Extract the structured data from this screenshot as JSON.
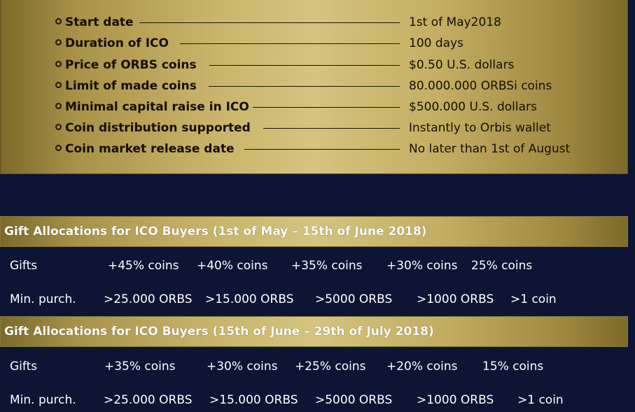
{
  "info": {
    "rows": [
      {
        "label": "Start date",
        "value": "1st of May2018"
      },
      {
        "label": "Duration of  ICO",
        "value": "100 days"
      },
      {
        "label": "Price of ORBS coins",
        "value": "$0.50 U.S. dollars"
      },
      {
        "label": "Limit of made coins",
        "value": "80.000.000 ORBSi coins"
      },
      {
        "label": "Minimal capital raise in ICO",
        "value": "$500.000 U.S. dollars"
      },
      {
        "label": "Coin distribution supported",
        "value": "Instantly to Orbis wallet"
      },
      {
        "label": "Coin market release date",
        "value": "No later than 1st of August"
      }
    ]
  },
  "sections": [
    {
      "title": "Gift Allocations for ICO Buyers (1st of May  – 15th of June 2018)",
      "gifts_label": "Gifts",
      "gifts": [
        "+45% coins",
        "+40% coins",
        "+35% coins",
        "+30% coins",
        "25%  coins"
      ],
      "min_label": "Min. purch.",
      "mins": [
        ">25.000 ORBS",
        ">15.000 ORBS",
        ">5000 ORBS",
        ">1000 ORBS",
        ">1 coin"
      ]
    },
    {
      "title": "Gift Allocations for ICO Buyers (15th of June – 29th of July 2018)",
      "gifts_label": "Gifts",
      "gifts": [
        "+35% coins",
        "+30% coins",
        "+25% coins",
        "+20% coins",
        "15% coins"
      ],
      "min_label": "Min. purch.",
      "mins": [
        ">25.000 ORBS",
        ">15.000 ORBS",
        ">5000 ORBS",
        ">1000 ORBS",
        ">1 coin"
      ]
    }
  ]
}
